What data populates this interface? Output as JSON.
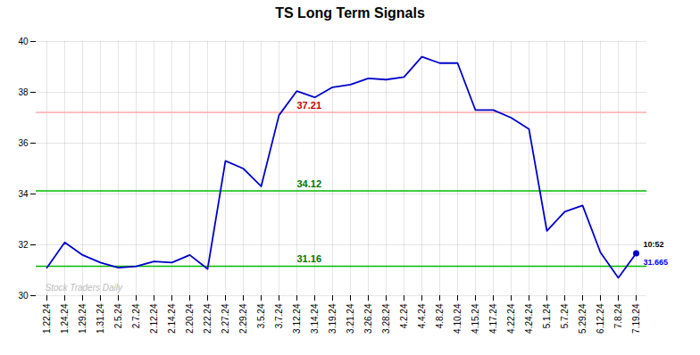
{
  "chart_data": {
    "type": "line",
    "title": "TS Long Term Signals",
    "categories": [
      "1.22.24",
      "1.24.24",
      "1.29.24",
      "1.31.24",
      "2.5.24",
      "2.7.24",
      "2.12.24",
      "2.14.24",
      "2.20.24",
      "2.22.24",
      "2.27.24",
      "2.29.24",
      "3.5.24",
      "3.7.24",
      "3.12.24",
      "3.14.24",
      "3.19.24",
      "3.21.24",
      "3.26.24",
      "3.28.24",
      "4.2.24",
      "4.4.24",
      "4.8.24",
      "4.10.24",
      "4.15.24",
      "4.17.24",
      "4.22.24",
      "4.24.24",
      "5.1.24",
      "5.7.24",
      "5.29.24",
      "6.12.24",
      "7.8.24",
      "7.19.24"
    ],
    "values": [
      31.1,
      32.1,
      31.6,
      31.3,
      31.1,
      31.15,
      31.35,
      31.3,
      31.6,
      31.05,
      35.3,
      35.0,
      34.3,
      37.1,
      38.05,
      37.8,
      38.2,
      38.3,
      38.55,
      38.5,
      38.6,
      39.4,
      39.15,
      39.15,
      37.3,
      37.3,
      37.0,
      36.55,
      32.55,
      33.3,
      33.55,
      31.7,
      30.7,
      31.665
    ],
    "color": "#0000cc",
    "ylim": [
      30,
      40
    ],
    "yticks": [
      30,
      32,
      34,
      36,
      38,
      40
    ],
    "grid": true,
    "hlines": [
      {
        "value": 37.21,
        "label": "37.21",
        "color": "#ffaaaa",
        "label_color": "#cc0000"
      },
      {
        "value": 34.12,
        "label": "34.12",
        "color": "#00bb00",
        "label_color": "#007700"
      },
      {
        "value": 31.16,
        "label": "31.16",
        "color": "#00bb00",
        "label_color": "#007700"
      }
    ],
    "annotations": [
      {
        "text": "10:52",
        "x": "7.19.24",
        "y": 31.665,
        "color": "#000000"
      },
      {
        "text": "31.665",
        "x": "7.19.24",
        "y": 31.665,
        "color": "#0000ff"
      },
      {
        "text": "Stock Traders Daily",
        "color": "#bbbbbb"
      }
    ]
  }
}
